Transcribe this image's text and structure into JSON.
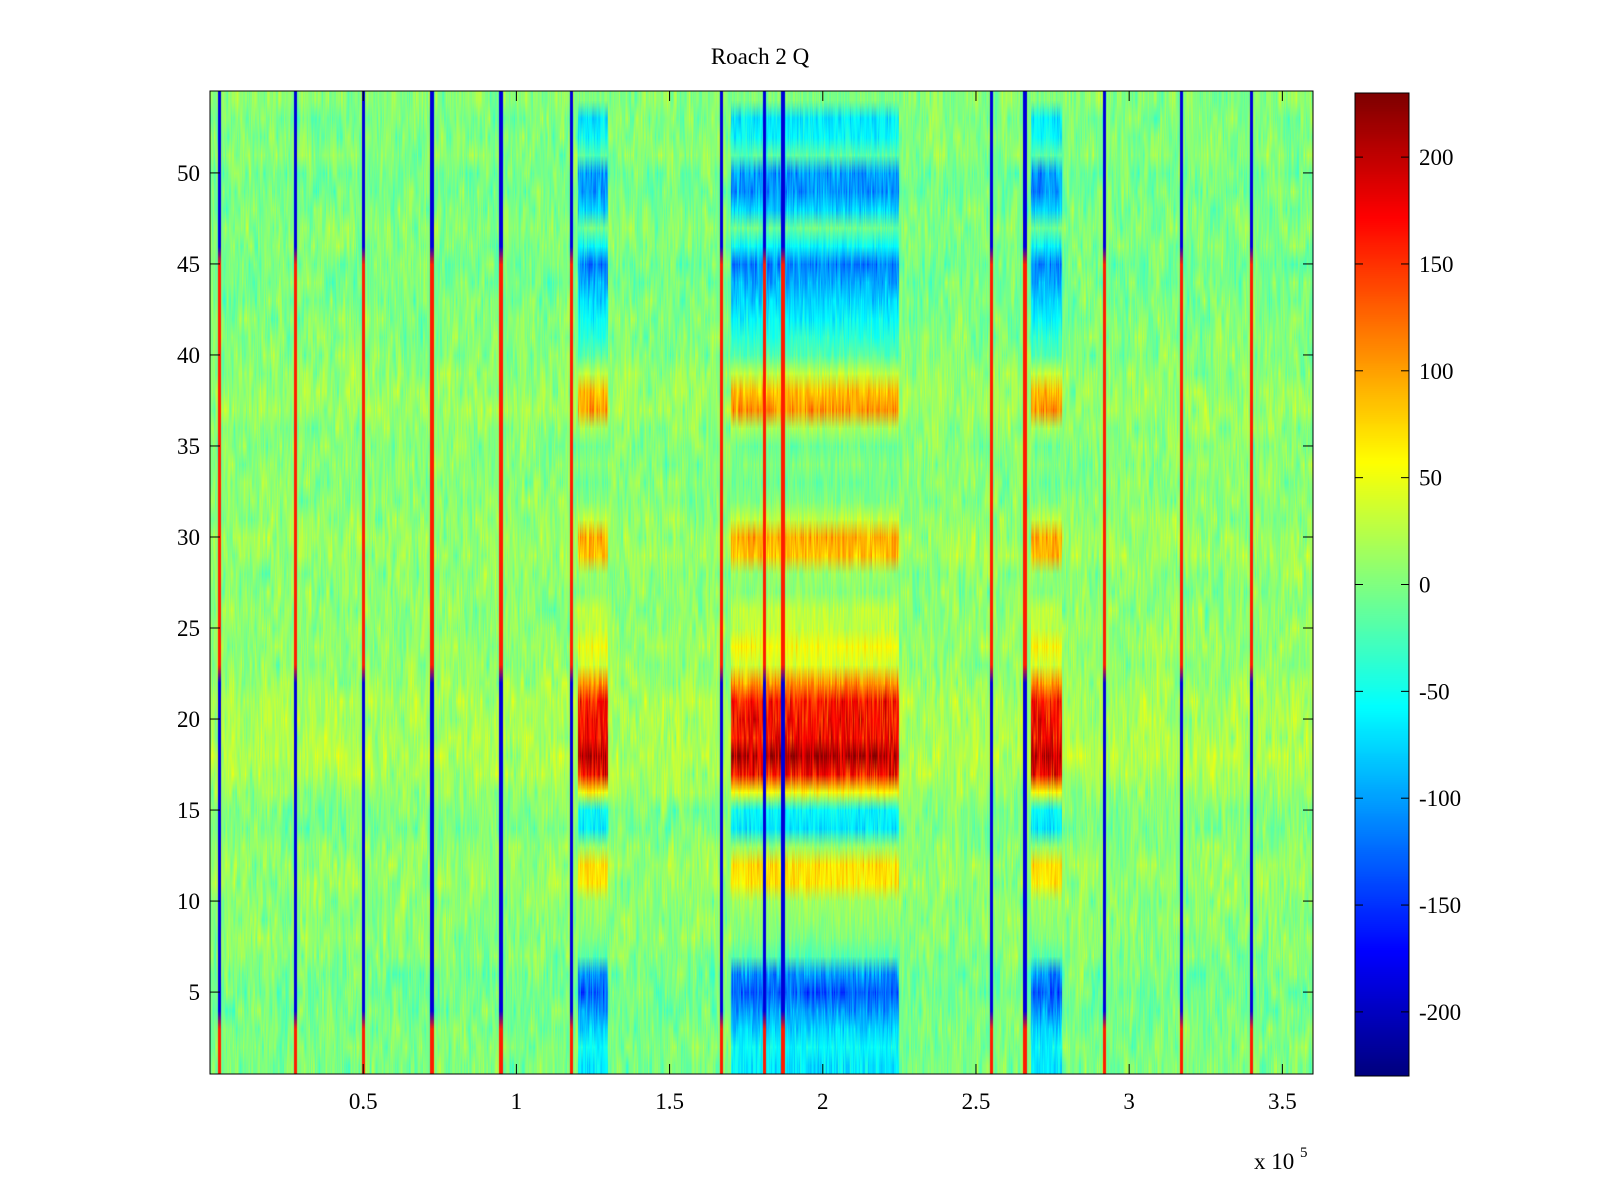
{
  "chart_data": {
    "type": "heatmap",
    "title": "Roach 2 Q",
    "xlabel": "",
    "ylabel": "",
    "x_multiplier_label": "x 10",
    "x_multiplier_exponent": "5",
    "xlim": [
      0,
      3.6
    ],
    "ylim": [
      0.5,
      54.5
    ],
    "x_scale": 100000,
    "x_ticks": [
      {
        "value": 0.5,
        "label": "0.5"
      },
      {
        "value": 1,
        "label": "1"
      },
      {
        "value": 1.5,
        "label": "1.5"
      },
      {
        "value": 2,
        "label": "2"
      },
      {
        "value": 2.5,
        "label": "2.5"
      },
      {
        "value": 3,
        "label": "3"
      },
      {
        "value": 3.5,
        "label": "3.5"
      }
    ],
    "y_ticks": [
      {
        "value": 5,
        "label": "5"
      },
      {
        "value": 10,
        "label": "10"
      },
      {
        "value": 15,
        "label": "15"
      },
      {
        "value": 20,
        "label": "20"
      },
      {
        "value": 25,
        "label": "25"
      },
      {
        "value": 30,
        "label": "30"
      },
      {
        "value": 35,
        "label": "35"
      },
      {
        "value": 40,
        "label": "40"
      },
      {
        "value": 45,
        "label": "45"
      },
      {
        "value": 50,
        "label": "50"
      }
    ],
    "rows": 54,
    "colorbar": {
      "colormap": "jet",
      "clim": [
        -230,
        230
      ],
      "ticks": [
        {
          "value": 200,
          "label": "200"
        },
        {
          "value": 150,
          "label": "150"
        },
        {
          "value": 100,
          "label": "100"
        },
        {
          "value": 50,
          "label": "50"
        },
        {
          "value": 0,
          "label": "0"
        },
        {
          "value": -50,
          "label": "-50"
        },
        {
          "value": -100,
          "label": "-100"
        },
        {
          "value": -150,
          "label": "-150"
        },
        {
          "value": -200,
          "label": "-200"
        }
      ]
    },
    "baseline_value": 5,
    "noise_amplitude": 25,
    "vertical_lines": {
      "x": [
        0.03,
        0.28,
        0.5,
        0.725,
        0.95,
        1.18,
        1.67,
        1.81,
        1.87,
        2.55,
        2.66,
        2.92,
        3.17,
        3.4
      ],
      "positive_rows": [
        [
          1,
          3
        ],
        [
          23,
          45
        ]
      ],
      "negative_rows": [
        [
          4,
          22
        ],
        [
          46,
          54
        ]
      ],
      "positive_value": 160,
      "negative_value": -190
    },
    "region_columns": [
      [
        1.2,
        1.3
      ],
      [
        1.7,
        2.25
      ],
      [
        2.68,
        2.78
      ]
    ],
    "row_profile": [
      {
        "row": 1,
        "value": -70
      },
      {
        "row": 2,
        "value": -60
      },
      {
        "row": 3,
        "value": -80
      },
      {
        "row": 4,
        "value": -110
      },
      {
        "row": 5,
        "value": -140
      },
      {
        "row": 6,
        "value": -110
      },
      {
        "row": 7,
        "value": -20
      },
      {
        "row": 8,
        "value": 0
      },
      {
        "row": 9,
        "value": 10
      },
      {
        "row": 10,
        "value": 15
      },
      {
        "row": 11,
        "value": 70
      },
      {
        "row": 12,
        "value": 75
      },
      {
        "row": 13,
        "value": 10
      },
      {
        "row": 14,
        "value": -70
      },
      {
        "row": 15,
        "value": -60
      },
      {
        "row": 16,
        "value": 60
      },
      {
        "row": 17,
        "value": 180
      },
      {
        "row": 18,
        "value": 220
      },
      {
        "row": 19,
        "value": 180
      },
      {
        "row": 20,
        "value": 175
      },
      {
        "row": 21,
        "value": 170
      },
      {
        "row": 22,
        "value": 110
      },
      {
        "row": 23,
        "value": 40
      },
      {
        "row": 24,
        "value": 60
      },
      {
        "row": 25,
        "value": 30
      },
      {
        "row": 26,
        "value": 30
      },
      {
        "row": 27,
        "value": 5
      },
      {
        "row": 28,
        "value": 10
      },
      {
        "row": 29,
        "value": 90
      },
      {
        "row": 30,
        "value": 100
      },
      {
        "row": 31,
        "value": 30
      },
      {
        "row": 32,
        "value": 0
      },
      {
        "row": 33,
        "value": -10
      },
      {
        "row": 34,
        "value": 0
      },
      {
        "row": 35,
        "value": -10
      },
      {
        "row": 36,
        "value": 20
      },
      {
        "row": 37,
        "value": 110
      },
      {
        "row": 38,
        "value": 90
      },
      {
        "row": 39,
        "value": 30
      },
      {
        "row": 40,
        "value": -20
      },
      {
        "row": 41,
        "value": -40
      },
      {
        "row": 42,
        "value": -60
      },
      {
        "row": 43,
        "value": -80
      },
      {
        "row": 44,
        "value": -100
      },
      {
        "row": 45,
        "value": -120
      },
      {
        "row": 46,
        "value": -60
      },
      {
        "row": 47,
        "value": -10
      },
      {
        "row": 48,
        "value": -80
      },
      {
        "row": 49,
        "value": -110
      },
      {
        "row": 50,
        "value": -110
      },
      {
        "row": 51,
        "value": -20
      },
      {
        "row": 52,
        "value": -60
      },
      {
        "row": 53,
        "value": -70
      },
      {
        "row": 54,
        "value": 0
      }
    ],
    "grid": false,
    "legend": "colorbar-right"
  }
}
